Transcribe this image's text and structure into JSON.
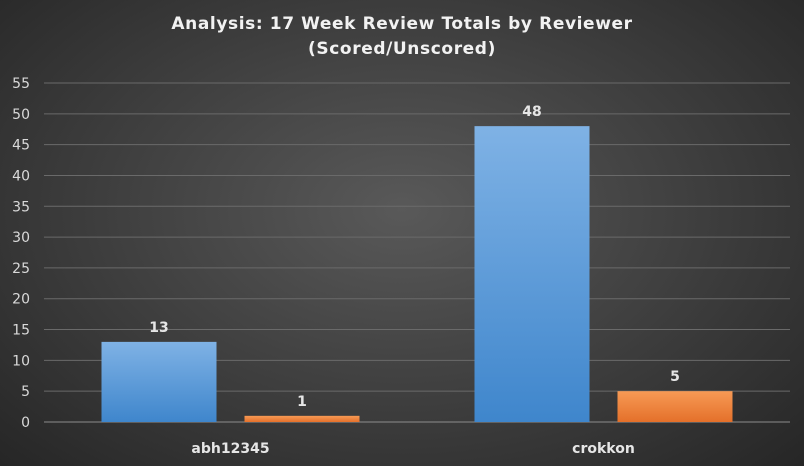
{
  "chart_data": {
    "type": "bar",
    "title": "Analysis:  17 Week Review Totals  by Reviewer",
    "subtitle": "(Scored/Unscored)",
    "categories": [
      "abh12345",
      "crokkon"
    ],
    "series": [
      {
        "values": [
          13,
          48
        ],
        "color": "#5b9bd5"
      },
      {
        "values": [
          1,
          5
        ],
        "color": "#ed7d31"
      }
    ],
    "yticks": [
      0,
      5,
      10,
      15,
      20,
      25,
      30,
      35,
      40,
      45,
      50,
      55
    ],
    "ylim": [
      0,
      55
    ],
    "grid": true,
    "legend": "none"
  }
}
